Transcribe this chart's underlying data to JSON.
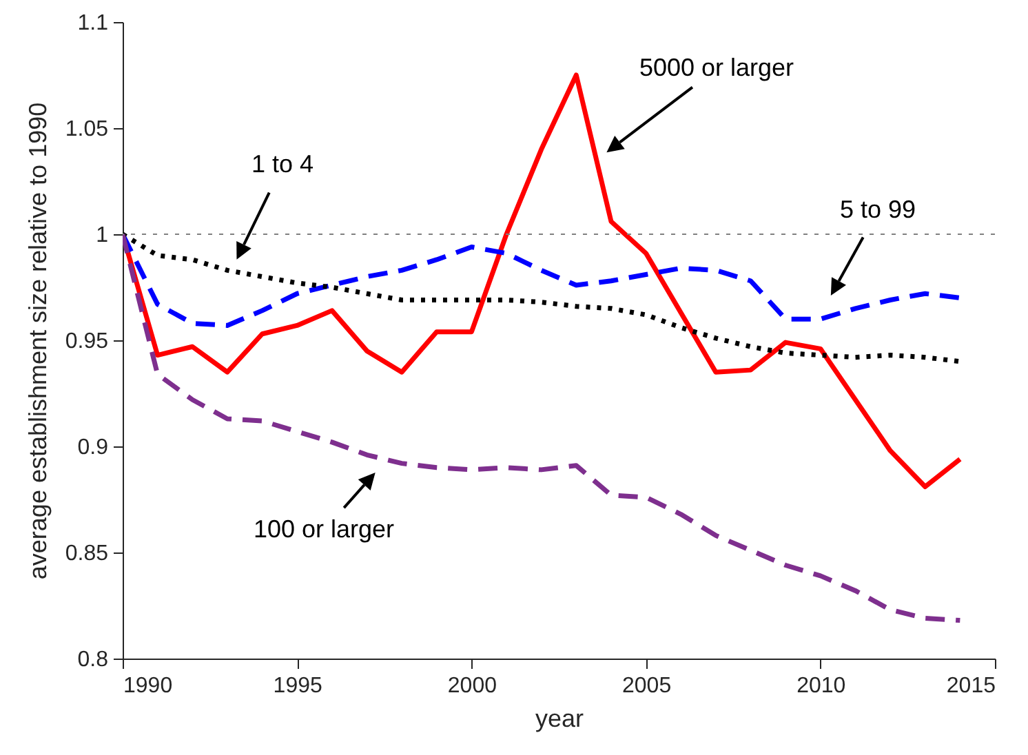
{
  "chart_data": {
    "type": "line",
    "xlabel": "year",
    "ylabel": "average establishment size relative to 1990",
    "x": [
      1990,
      1991,
      1992,
      1993,
      1994,
      1995,
      1996,
      1997,
      1998,
      1999,
      2000,
      2001,
      2002,
      2003,
      2004,
      2005,
      2006,
      2007,
      2008,
      2009,
      2010,
      2011,
      2012,
      2013,
      2014
    ],
    "series": [
      {
        "color": "#ff0000",
        "line_style": "solid",
        "values": [
          1,
          0.943,
          0.947,
          0.935,
          0.953,
          0.957,
          0.964,
          0.945,
          0.935,
          0.954,
          0.954,
          1.0,
          1.04,
          1.075,
          1.006,
          0.991,
          0.963,
          0.935,
          0.936,
          0.949,
          0.946,
          0.922,
          0.898,
          0.881,
          0.894
        ]
      },
      {
        "color": "#0000ff",
        "line_style": "dashed",
        "values": [
          1,
          0.967,
          0.958,
          0.957,
          0.964,
          0.972,
          0.976,
          0.98,
          0.983,
          0.988,
          0.994,
          0.991,
          0.983,
          0.976,
          0.978,
          0.981,
          0.984,
          0.983,
          0.978,
          0.96,
          0.96,
          0.965,
          0.969,
          0.972,
          0.97
        ]
      },
      {
        "color": "#000000",
        "line_style": "dotted",
        "values": [
          1,
          0.99,
          0.988,
          0.983,
          0.98,
          0.977,
          0.975,
          0.972,
          0.969,
          0.969,
          0.969,
          0.969,
          0.968,
          0.966,
          0.965,
          0.962,
          0.956,
          0.951,
          0.947,
          0.944,
          0.943,
          0.942,
          0.943,
          0.942,
          0.94
        ]
      },
      {
        "color": "#7e2f8e",
        "line_style": "dashed",
        "values": [
          1,
          0.934,
          0.922,
          0.913,
          0.912,
          0.907,
          0.902,
          0.896,
          0.892,
          0.89,
          0.889,
          0.89,
          0.889,
          0.891,
          0.877,
          0.876,
          0.868,
          0.858,
          0.851,
          0.844,
          0.839,
          0.832,
          0.823,
          0.819,
          0.818
        ]
      }
    ],
    "xlim": [
      1990,
      2015
    ],
    "xticks": [
      1990,
      1995,
      2000,
      2005,
      2010,
      2015
    ],
    "ylim": [
      0.8,
      1.1
    ],
    "yticks": [
      0.8,
      0.85,
      0.9,
      0.95,
      1,
      1.05,
      1.1
    ],
    "ref_lines": [
      {
        "axis": "y",
        "value": 1,
        "color": "#808080",
        "line_style": "dotted"
      }
    ],
    "annotations": [
      "1 to 4",
      "5000 or larger",
      "5 to 99",
      "100 or larger"
    ],
    "grid": false
  }
}
